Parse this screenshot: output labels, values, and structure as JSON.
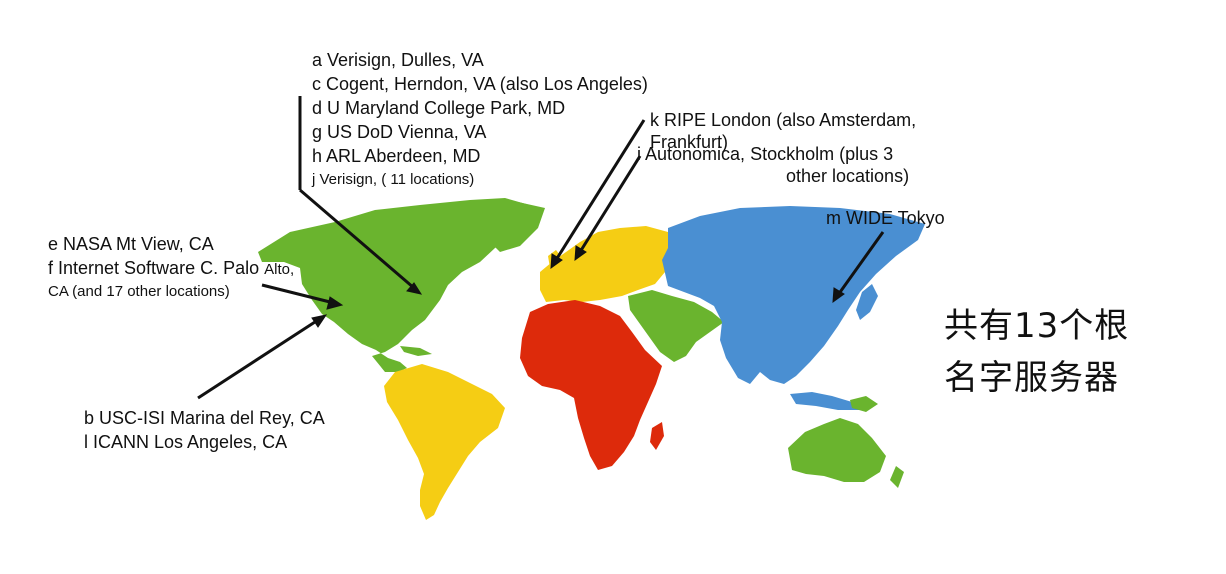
{
  "continent_colors": {
    "north_america": "#6ab42e",
    "south_america": "#f5cd14",
    "europe": "#f5cd14",
    "africa": "#dd2a0b",
    "middle_east": "#6ab42e",
    "asia": "#4a8fd2",
    "australia": "#6ab42e"
  },
  "east_coast_group": [
    "a Verisign, Dulles, VA",
    "c Cogent, Herndon, VA (also Los Angeles)",
    "d U Maryland College Park, MD",
    "g US DoD Vienna, VA",
    "h ARL Aberdeen, MD",
    "j  Verisign, ( 11 locations)"
  ],
  "west_coast_group": {
    "line1": "e NASA Mt View, CA",
    "line2_main": "f  Internet Software C. Palo ",
    "line2_small": "Alto,",
    "line3": "CA (and 17 other locations)"
  },
  "la_group": [
    "b USC-ISI Marina del Rey, CA",
    "l  ICANN Los Angeles, CA"
  ],
  "europe_group": {
    "k_line1": "k RIPE London (also Amsterdam,",
    "k_line2": "Frankfurt)",
    "i_line1": "i Autonomica, Stockholm (plus 3",
    "i_line2": "other locations)"
  },
  "tokyo_label": "m WIDE Tokyo",
  "summary": {
    "line1": "共有13个根",
    "line2": "名字服务器"
  }
}
